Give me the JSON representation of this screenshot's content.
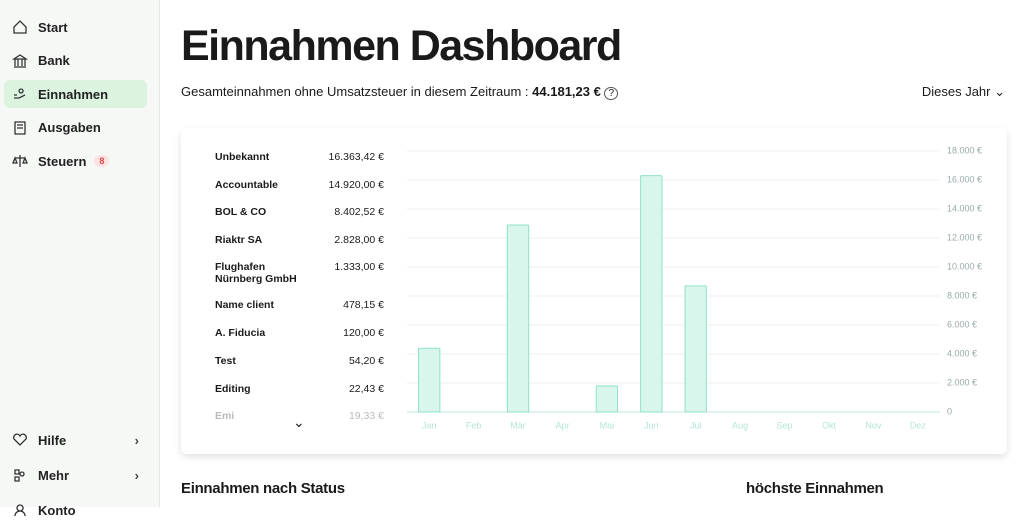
{
  "sidebar": {
    "nav": [
      {
        "label": "Start"
      },
      {
        "label": "Bank"
      },
      {
        "label": "Einnahmen"
      },
      {
        "label": "Ausgaben"
      },
      {
        "label": "Steuern",
        "badge": 8
      }
    ],
    "bottom": [
      {
        "label": "Hilfe"
      },
      {
        "label": "Mehr"
      },
      {
        "label": "Konto"
      }
    ]
  },
  "header": {
    "title": "Einnahmen Dashboard",
    "summary_label": "Gesamteinnahmen ohne Umsatzsteuer in diesem Zeitraum :",
    "summary_value": "44.181,23 €",
    "period": "Dieses Jahr"
  },
  "clients": [
    {
      "name": "Unbekannt",
      "amount": "16.363,42 €"
    },
    {
      "name": "Accountable",
      "amount": "14.920,00 €"
    },
    {
      "name": "BOL & CO",
      "amount": "8.402,52 €"
    },
    {
      "name": "Riaktr SA",
      "amount": "2.828,00 €"
    },
    {
      "name": "Flughafen Nürnberg GmbH",
      "amount": "1.333,00 €"
    },
    {
      "name": "Name client",
      "amount": "478,15 €"
    },
    {
      "name": "A. Fiducia",
      "amount": "120,00 €"
    },
    {
      "name": "Test",
      "amount": "54,20 €"
    },
    {
      "name": "Editing",
      "amount": "22,43 €"
    },
    {
      "name": "Emi",
      "amount": "19,33 €"
    }
  ],
  "chart_data": {
    "type": "bar",
    "categories": [
      "Jan",
      "Feb",
      "Mär",
      "Apr",
      "Mai",
      "Jun",
      "Jul",
      "Aug",
      "Sep",
      "Okt",
      "Nov",
      "Dez"
    ],
    "values": [
      4400,
      0,
      12900,
      0,
      1800,
      16300,
      8700,
      0,
      0,
      0,
      0,
      0
    ],
    "color": "#d8f6eb",
    "edge_color": "#8fe3c3",
    "ylim": [
      0,
      18000
    ],
    "yticks": [
      0,
      {
        "value": 2000,
        "label": "2.000 €"
      },
      {
        "value": 4000,
        "label": "4.000 €"
      },
      {
        "value": 6000,
        "label": "6.000 €"
      },
      {
        "value": 8000,
        "label": "8.000 €"
      },
      {
        "value": 10000,
        "label": "10.000 €"
      },
      {
        "value": 12000,
        "label": "12.000 €"
      },
      {
        "value": 14000,
        "label": "14.000 €"
      },
      {
        "value": 16000,
        "label": "16.000 €"
      },
      {
        "value": 18000,
        "label": "18.000 €"
      }
    ],
    "grid": true,
    "y_axis_side": "right"
  },
  "sections": [
    "Einnahmen nach Status",
    "höchste Einnahmen"
  ]
}
